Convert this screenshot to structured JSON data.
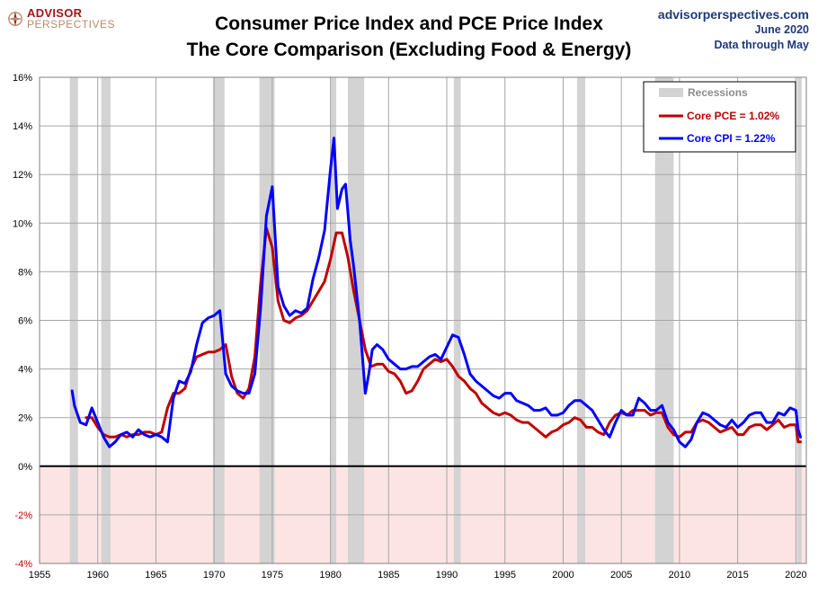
{
  "branding": {
    "logo_top": "ADVISOR",
    "logo_bottom": "PERSPECTIVES",
    "site": "advisorperspectives.com",
    "date": "June 2020",
    "data_note": "Data through May"
  },
  "colors": {
    "core_pce": "#c00000",
    "core_cpi": "#0000ff",
    "recession": "#d3d3d3",
    "negative_zone": "#fde4e4",
    "logo_red": "#a5141a",
    "source_text": "#1f3a7a"
  },
  "chart_data": {
    "type": "line",
    "title": "Consumer Price Index and PCE Price Index",
    "subtitle": "The Core Comparison (Excluding Food & Energy)",
    "xlim": [
      1955,
      2020.9
    ],
    "ylim": [
      -4,
      16
    ],
    "x_ticks": [
      1955,
      1960,
      1965,
      1970,
      1975,
      1980,
      1985,
      1990,
      1995,
      2000,
      2005,
      2010,
      2015,
      2020
    ],
    "x_tick_labels": [
      "1955",
      "1960",
      "1965",
      "1970",
      "1975",
      "1980",
      "1985",
      "1990",
      "1995",
      "2000",
      "2005",
      "2010",
      "2015",
      "2020"
    ],
    "y_ticks": [
      -4,
      -2,
      0,
      2,
      4,
      6,
      8,
      10,
      12,
      14,
      16
    ],
    "y_tick_labels": [
      "-4%",
      "-2%",
      "0%",
      "2%",
      "4%",
      "6%",
      "8%",
      "10%",
      "12%",
      "14%",
      "16%"
    ],
    "grid": true,
    "negative_zone_shaded": true,
    "legend": {
      "position": "top-right",
      "recessions_label": "Recessions",
      "pce_label": "Core PCE = 1.02%",
      "cpi_label": "Core CPI = 1.22%"
    },
    "recessions": [
      [
        1957.6,
        1958.3
      ],
      [
        1960.3,
        1961.1
      ],
      [
        1969.9,
        1970.9
      ],
      [
        1973.9,
        1975.2
      ],
      [
        1980.0,
        1980.5
      ],
      [
        1981.5,
        1982.9
      ],
      [
        1990.6,
        1991.2
      ],
      [
        2001.2,
        2001.9
      ],
      [
        2007.9,
        2009.5
      ],
      [
        2020.1,
        2020.5
      ]
    ],
    "series": [
      {
        "name": "Core PCE = 1.02%",
        "color": "#c00000",
        "x": [
          1959.0,
          1959.5,
          1960.0,
          1960.5,
          1961.0,
          1961.5,
          1962.0,
          1962.5,
          1963.0,
          1963.5,
          1964.0,
          1964.5,
          1965.0,
          1965.5,
          1966.0,
          1966.5,
          1967.0,
          1967.5,
          1968.0,
          1968.5,
          1969.0,
          1969.5,
          1970.0,
          1970.5,
          1971.0,
          1971.5,
          1972.0,
          1972.5,
          1973.0,
          1973.5,
          1974.0,
          1974.5,
          1975.0,
          1975.5,
          1976.0,
          1976.5,
          1977.0,
          1977.5,
          1978.0,
          1978.5,
          1979.0,
          1979.5,
          1980.0,
          1980.5,
          1981.0,
          1981.5,
          1982.0,
          1982.5,
          1983.0,
          1983.5,
          1984.0,
          1984.5,
          1985.0,
          1985.5,
          1986.0,
          1986.5,
          1987.0,
          1987.5,
          1988.0,
          1988.5,
          1989.0,
          1989.5,
          1990.0,
          1990.5,
          1991.0,
          1991.5,
          1992.0,
          1992.5,
          1993.0,
          1993.5,
          1994.0,
          1994.5,
          1995.0,
          1995.5,
          1996.0,
          1996.5,
          1997.0,
          1997.5,
          1998.0,
          1998.5,
          1999.0,
          1999.5,
          2000.0,
          2000.5,
          2001.0,
          2001.5,
          2002.0,
          2002.5,
          2003.0,
          2003.5,
          2004.0,
          2004.5,
          2005.0,
          2005.5,
          2006.0,
          2006.5,
          2007.0,
          2007.5,
          2008.0,
          2008.5,
          2009.0,
          2009.5,
          2010.0,
          2010.5,
          2011.0,
          2011.5,
          2012.0,
          2012.5,
          2013.0,
          2013.5,
          2014.0,
          2014.5,
          2015.0,
          2015.5,
          2016.0,
          2016.5,
          2017.0,
          2017.5,
          2018.0,
          2018.5,
          2019.0,
          2019.5,
          2020.0,
          2020.2,
          2020.4
        ],
        "values": [
          2.0,
          2.0,
          1.6,
          1.3,
          1.2,
          1.2,
          1.3,
          1.2,
          1.3,
          1.3,
          1.4,
          1.4,
          1.3,
          1.4,
          2.4,
          3.0,
          3.0,
          3.2,
          4.0,
          4.5,
          4.6,
          4.7,
          4.7,
          4.8,
          5.0,
          3.7,
          3.0,
          2.8,
          3.2,
          4.5,
          7.5,
          9.8,
          9.0,
          6.8,
          6.0,
          5.9,
          6.1,
          6.2,
          6.4,
          6.8,
          7.2,
          7.6,
          8.5,
          9.6,
          9.6,
          8.6,
          7.2,
          6.0,
          4.8,
          4.1,
          4.2,
          4.2,
          3.9,
          3.8,
          3.5,
          3.0,
          3.1,
          3.5,
          4.0,
          4.2,
          4.4,
          4.3,
          4.4,
          4.1,
          3.7,
          3.5,
          3.2,
          3.0,
          2.6,
          2.4,
          2.2,
          2.1,
          2.2,
          2.1,
          1.9,
          1.8,
          1.8,
          1.6,
          1.4,
          1.2,
          1.4,
          1.5,
          1.7,
          1.8,
          2.0,
          1.9,
          1.6,
          1.6,
          1.4,
          1.3,
          1.8,
          2.1,
          2.2,
          2.1,
          2.3,
          2.3,
          2.3,
          2.1,
          2.2,
          2.2,
          1.6,
          1.3,
          1.2,
          1.4,
          1.4,
          1.8,
          1.9,
          1.8,
          1.6,
          1.4,
          1.5,
          1.6,
          1.3,
          1.3,
          1.6,
          1.7,
          1.7,
          1.5,
          1.7,
          1.9,
          1.6,
          1.7,
          1.7,
          1.0,
          1.0
        ],
        "values_note": "approximate year-over-year %"
      },
      {
        "name": "Core CPI = 1.22%",
        "color": "#0000ff",
        "x": [
          1957.8,
          1958.0,
          1958.5,
          1959.0,
          1959.5,
          1960.0,
          1960.5,
          1961.0,
          1961.5,
          1962.0,
          1962.5,
          1963.0,
          1963.5,
          1964.0,
          1964.5,
          1965.0,
          1965.5,
          1966.0,
          1966.5,
          1967.0,
          1967.5,
          1968.0,
          1968.5,
          1969.0,
          1969.5,
          1970.0,
          1970.5,
          1971.0,
          1971.5,
          1972.0,
          1972.5,
          1973.0,
          1973.5,
          1974.0,
          1974.5,
          1975.0,
          1975.5,
          1976.0,
          1976.5,
          1977.0,
          1977.5,
          1978.0,
          1978.5,
          1979.0,
          1979.5,
          1980.0,
          1980.3,
          1980.6,
          1981.0,
          1981.3,
          1981.7,
          1982.0,
          1982.5,
          1983.0,
          1983.3,
          1983.6,
          1984.0,
          1984.5,
          1985.0,
          1985.5,
          1986.0,
          1986.5,
          1987.0,
          1987.5,
          1988.0,
          1988.5,
          1989.0,
          1989.5,
          1990.0,
          1990.5,
          1991.0,
          1991.5,
          1992.0,
          1992.5,
          1993.0,
          1993.5,
          1994.0,
          1994.5,
          1995.0,
          1995.5,
          1996.0,
          1996.5,
          1997.0,
          1997.5,
          1998.0,
          1998.5,
          1999.0,
          1999.5,
          2000.0,
          2000.5,
          2001.0,
          2001.5,
          2002.0,
          2002.5,
          2003.0,
          2003.5,
          2004.0,
          2004.5,
          2005.0,
          2005.5,
          2006.0,
          2006.5,
          2007.0,
          2007.5,
          2008.0,
          2008.5,
          2009.0,
          2009.5,
          2010.0,
          2010.5,
          2011.0,
          2011.5,
          2012.0,
          2012.5,
          2013.0,
          2013.5,
          2014.0,
          2014.5,
          2015.0,
          2015.5,
          2016.0,
          2016.5,
          2017.0,
          2017.5,
          2018.0,
          2018.5,
          2019.0,
          2019.5,
          2020.0,
          2020.2,
          2020.4
        ],
        "values": [
          3.1,
          2.5,
          1.8,
          1.7,
          2.4,
          1.8,
          1.2,
          0.8,
          1.0,
          1.3,
          1.4,
          1.2,
          1.5,
          1.3,
          1.2,
          1.3,
          1.2,
          1.0,
          2.8,
          3.5,
          3.4,
          3.9,
          5.0,
          5.9,
          6.1,
          6.2,
          6.4,
          3.8,
          3.3,
          3.1,
          3.0,
          3.0,
          3.8,
          6.5,
          10.3,
          11.5,
          7.4,
          6.6,
          6.2,
          6.4,
          6.3,
          6.5,
          7.7,
          8.6,
          9.7,
          12.2,
          13.5,
          10.6,
          11.4,
          11.6,
          9.3,
          8.2,
          6.0,
          3.0,
          3.8,
          4.8,
          5.0,
          4.8,
          4.4,
          4.2,
          4.0,
          4.0,
          4.1,
          4.1,
          4.3,
          4.5,
          4.6,
          4.4,
          4.9,
          5.4,
          5.3,
          4.6,
          3.8,
          3.5,
          3.3,
          3.1,
          2.9,
          2.8,
          3.0,
          3.0,
          2.7,
          2.6,
          2.5,
          2.3,
          2.3,
          2.4,
          2.1,
          2.1,
          2.2,
          2.5,
          2.7,
          2.7,
          2.5,
          2.3,
          1.9,
          1.5,
          1.2,
          1.8,
          2.3,
          2.1,
          2.1,
          2.8,
          2.6,
          2.3,
          2.3,
          2.5,
          1.8,
          1.5,
          1.0,
          0.8,
          1.1,
          1.8,
          2.2,
          2.1,
          1.9,
          1.7,
          1.6,
          1.9,
          1.6,
          1.8,
          2.1,
          2.2,
          2.2,
          1.8,
          1.8,
          2.2,
          2.1,
          2.4,
          2.3,
          1.5,
          1.2
        ],
        "values_note": "approximate year-over-year %"
      }
    ]
  }
}
